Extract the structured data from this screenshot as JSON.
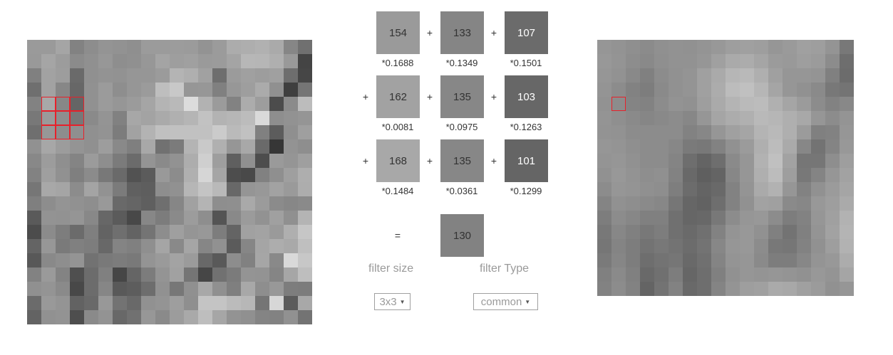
{
  "input_image": {
    "rows": [
      [
        154,
        154,
        165,
        130,
        141,
        148,
        146,
        143,
        155,
        155,
        156,
        155,
        147,
        155,
        172,
        174,
        177,
        170,
        134,
        112
      ],
      [
        153,
        165,
        156,
        139,
        144,
        151,
        142,
        144,
        151,
        164,
        158,
        160,
        154,
        155,
        164,
        183,
        182,
        175,
        153,
        68
      ],
      [
        128,
        162,
        157,
        106,
        144,
        147,
        146,
        150,
        150,
        155,
        180,
        175,
        161,
        110,
        155,
        160,
        157,
        160,
        110,
        70
      ],
      [
        111,
        162,
        135,
        103,
        145,
        155,
        142,
        150,
        155,
        190,
        200,
        150,
        151,
        128,
        151,
        158,
        171,
        144,
        63,
        117
      ],
      [
        130,
        168,
        135,
        101,
        145,
        155,
        150,
        155,
        165,
        180,
        185,
        220,
        178,
        155,
        130,
        172,
        157,
        76,
        139,
        188
      ],
      [
        120,
        154,
        142,
        120,
        138,
        148,
        129,
        167,
        163,
        170,
        176,
        181,
        194,
        179,
        182,
        188,
        218,
        142,
        146,
        149
      ],
      [
        111,
        151,
        141,
        143,
        144,
        147,
        124,
        162,
        179,
        192,
        193,
        193,
        193,
        203,
        186,
        193,
        128,
        92,
        143,
        159
      ],
      [
        145,
        167,
        156,
        148,
        144,
        157,
        137,
        127,
        168,
        113,
        123,
        180,
        201,
        176,
        150,
        168,
        106,
        54,
        147,
        142
      ],
      [
        136,
        156,
        143,
        132,
        155,
        142,
        123,
        107,
        148,
        138,
        146,
        173,
        207,
        158,
        95,
        144,
        77,
        154,
        149,
        159
      ],
      [
        130,
        159,
        145,
        127,
        139,
        120,
        106,
        82,
        91,
        153,
        140,
        176,
        214,
        165,
        77,
        73,
        129,
        143,
        159,
        174
      ],
      [
        118,
        168,
        165,
        140,
        164,
        146,
        123,
        96,
        94,
        142,
        145,
        182,
        196,
        185,
        104,
        149,
        152,
        162,
        154,
        173
      ],
      [
        127,
        141,
        148,
        145,
        142,
        153,
        105,
        101,
        95,
        111,
        134,
        161,
        180,
        142,
        143,
        169,
        155,
        139,
        135,
        138
      ],
      [
        90,
        147,
        146,
        149,
        136,
        103,
        91,
        72,
        135,
        124,
        138,
        156,
        142,
        84,
        137,
        155,
        146,
        160,
        144,
        180
      ],
      [
        76,
        139,
        125,
        107,
        127,
        99,
        111,
        99,
        116,
        141,
        159,
        149,
        152,
        125,
        100,
        161,
        163,
        154,
        175,
        198
      ],
      [
        100,
        151,
        122,
        128,
        125,
        104,
        132,
        128,
        143,
        165,
        137,
        165,
        134,
        145,
        91,
        134,
        165,
        173,
        169,
        191
      ],
      [
        88,
        137,
        142,
        148,
        114,
        121,
        124,
        121,
        148,
        154,
        163,
        155,
        104,
        89,
        141,
        129,
        166,
        137,
        217,
        199
      ],
      [
        130,
        154,
        131,
        79,
        108,
        128,
        70,
        101,
        124,
        148,
        161,
        117,
        70,
        113,
        123,
        148,
        147,
        133,
        166,
        190
      ],
      [
        144,
        148,
        138,
        72,
        108,
        134,
        89,
        93,
        109,
        145,
        119,
        144,
        168,
        144,
        127,
        168,
        142,
        152,
        125,
        124
      ],
      [
        107,
        153,
        148,
        98,
        105,
        152,
        115,
        105,
        145,
        148,
        158,
        143,
        196,
        196,
        187,
        183,
        117,
        215,
        91,
        168
      ],
      [
        99,
        145,
        147,
        78,
        138,
        147,
        104,
        113,
        151,
        138,
        156,
        169,
        190,
        166,
        147,
        144,
        132,
        130,
        145,
        115
      ]
    ]
  },
  "kernel_cells": [
    {
      "value": "154",
      "weight": "*0.1688"
    },
    {
      "value": "133",
      "weight": "*0.1349"
    },
    {
      "value": "107",
      "weight": "*0.1501"
    },
    {
      "value": "162",
      "weight": "*0.0081"
    },
    {
      "value": "135",
      "weight": "*0.0975"
    },
    {
      "value": "103",
      "weight": "*0.1263"
    },
    {
      "value": "168",
      "weight": "*0.1484"
    },
    {
      "value": "135",
      "weight": "*0.0361"
    },
    {
      "value": "101",
      "weight": "*0.1299"
    }
  ],
  "operators": {
    "plus": "+",
    "equals": "="
  },
  "result_value": "130",
  "controls": {
    "filter_size_label": "filter size",
    "filter_size_value": "3x3",
    "filter_type_label": "filter Type",
    "filter_type_value": "common",
    "dropdown_arrow": "▼"
  },
  "output_image": {
    "rows": [
      [
        150,
        147,
        143,
        139,
        144,
        146,
        145,
        148,
        152,
        158,
        160,
        158,
        150,
        154,
        160,
        158,
        148,
        120
      ],
      [
        152,
        148,
        141,
        137,
        143,
        146,
        146,
        150,
        160,
        170,
        172,
        165,
        155,
        153,
        158,
        155,
        140,
        110
      ],
      [
        150,
        146,
        137,
        128,
        140,
        145,
        148,
        160,
        170,
        182,
        185,
        175,
        160,
        150,
        150,
        148,
        128,
        108
      ],
      [
        148,
        140,
        130,
        125,
        138,
        145,
        148,
        160,
        172,
        188,
        192,
        182,
        165,
        150,
        145,
        138,
        120,
        116
      ],
      [
        146,
        140,
        132,
        130,
        140,
        147,
        145,
        158,
        170,
        180,
        186,
        188,
        176,
        165,
        155,
        140,
        130,
        136
      ],
      [
        148,
        143,
        138,
        134,
        137,
        140,
        135,
        150,
        165,
        172,
        176,
        185,
        182,
        175,
        168,
        150,
        140,
        148
      ],
      [
        147,
        146,
        140,
        140,
        140,
        140,
        130,
        135,
        150,
        160,
        165,
        180,
        185,
        175,
        155,
        128,
        130,
        150
      ],
      [
        150,
        148,
        143,
        140,
        140,
        135,
        122,
        120,
        130,
        145,
        155,
        175,
        188,
        170,
        135,
        115,
        132,
        152
      ],
      [
        148,
        150,
        145,
        140,
        140,
        132,
        110,
        100,
        110,
        138,
        150,
        178,
        192,
        162,
        118,
        118,
        142,
        158
      ],
      [
        145,
        152,
        147,
        142,
        144,
        130,
        105,
        95,
        100,
        135,
        150,
        175,
        188,
        158,
        120,
        132,
        150,
        162
      ],
      [
        140,
        150,
        148,
        144,
        142,
        126,
        108,
        100,
        105,
        130,
        148,
        170,
        178,
        150,
        130,
        145,
        155,
        165
      ],
      [
        132,
        145,
        142,
        138,
        135,
        118,
        102,
        98,
        110,
        130,
        145,
        162,
        160,
        138,
        135,
        152,
        158,
        170
      ],
      [
        125,
        140,
        135,
        128,
        128,
        112,
        102,
        104,
        120,
        140,
        150,
        152,
        140,
        125,
        130,
        150,
        160,
        178
      ],
      [
        120,
        135,
        128,
        120,
        125,
        112,
        106,
        112,
        130,
        148,
        152,
        145,
        128,
        115,
        128,
        148,
        162,
        180
      ],
      [
        118,
        132,
        125,
        115,
        120,
        115,
        108,
        115,
        135,
        150,
        152,
        140,
        120,
        118,
        130,
        145,
        158,
        178
      ],
      [
        122,
        134,
        125,
        110,
        115,
        118,
        105,
        112,
        132,
        148,
        150,
        138,
        125,
        125,
        135,
        148,
        152,
        172
      ],
      [
        128,
        138,
        128,
        105,
        112,
        125,
        102,
        110,
        128,
        145,
        150,
        148,
        150,
        148,
        145,
        152,
        148,
        165
      ],
      [
        130,
        140,
        130,
        100,
        115,
        130,
        105,
        110,
        132,
        148,
        158,
        160,
        170,
        168,
        160,
        155,
        145,
        150
      ]
    ]
  }
}
